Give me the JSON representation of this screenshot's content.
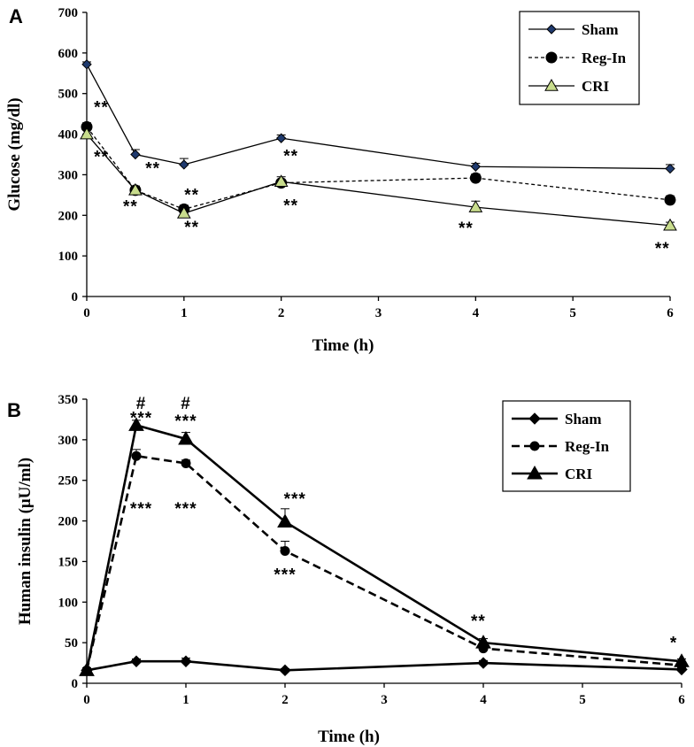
{
  "chart_data": [
    {
      "type": "line",
      "panel": "A",
      "title": "",
      "xlabel": "Time (h)",
      "ylabel": "Glucose (mg/dl)",
      "xlim": [
        0,
        6
      ],
      "ylim": [
        0,
        700
      ],
      "xticks": [
        0,
        1,
        2,
        3,
        4,
        5,
        6
      ],
      "yticks": [
        0,
        100,
        200,
        300,
        400,
        500,
        600,
        700
      ],
      "legend_position": "top-right",
      "series": [
        {
          "name": "Sham",
          "x": [
            0,
            0.5,
            1,
            2,
            4,
            6
          ],
          "values": [
            572,
            350,
            325,
            390,
            320,
            315
          ],
          "err": [
            6,
            12,
            15,
            8,
            8,
            10
          ],
          "marker": "diamond",
          "dash": "solid",
          "color": "#000000",
          "marker_fill": "#1f3a6e"
        },
        {
          "name": "Reg-In",
          "x": [
            0,
            0.5,
            1,
            2,
            4,
            6
          ],
          "values": [
            418,
            262,
            215,
            280,
            292,
            238
          ],
          "err": [
            10,
            10,
            10,
            8,
            10,
            10
          ],
          "marker": "circle",
          "dash": "dashed",
          "color": "#000000",
          "marker_fill": "#000000"
        },
        {
          "name": "CRI",
          "x": [
            0,
            0.5,
            1,
            2,
            4,
            6
          ],
          "values": [
            400,
            262,
            205,
            283,
            220,
            175
          ],
          "err": [
            10,
            10,
            12,
            12,
            15,
            8
          ],
          "marker": "triangle",
          "dash": "solid",
          "color": "#000000",
          "marker_fill": "#c8dc8c"
        }
      ],
      "annotations": [
        {
          "text": "**",
          "x": 0.15,
          "y": 452
        },
        {
          "text": "**",
          "x": 0.15,
          "y": 330
        },
        {
          "text": "**",
          "x": 0.68,
          "y": 302
        },
        {
          "text": "**",
          "x": 0.45,
          "y": 208
        },
        {
          "text": "**",
          "x": 1.08,
          "y": 237
        },
        {
          "text": "**",
          "x": 1.08,
          "y": 157
        },
        {
          "text": "**",
          "x": 2.1,
          "y": 333
        },
        {
          "text": "**",
          "x": 2.1,
          "y": 210
        },
        {
          "text": "**",
          "x": 3.9,
          "y": 155
        },
        {
          "text": "**",
          "x": 5.92,
          "y": 105
        }
      ]
    },
    {
      "type": "line",
      "panel": "B",
      "title": "",
      "xlabel": "Time (h)",
      "ylabel": "Human insulin (μU/ml)",
      "xlim": [
        0,
        6
      ],
      "ylim": [
        0,
        350
      ],
      "xticks": [
        0,
        1,
        2,
        3,
        4,
        5,
        6
      ],
      "yticks": [
        0,
        50,
        100,
        150,
        200,
        250,
        300,
        350
      ],
      "legend_position": "top-right",
      "series": [
        {
          "name": "Sham",
          "x": [
            0,
            0.5,
            1,
            2,
            4,
            6
          ],
          "values": [
            16,
            27,
            27,
            16,
            25,
            17
          ],
          "err": [
            3,
            3,
            4,
            2,
            3,
            3
          ],
          "marker": "diamond",
          "dash": "solid",
          "color": "#000000",
          "marker_fill": "#000000"
        },
        {
          "name": "Reg-In",
          "x": [
            0,
            0.5,
            1,
            2,
            4,
            6
          ],
          "values": [
            16,
            280,
            271,
            163,
            43,
            22
          ],
          "err": [
            3,
            8,
            4,
            12,
            4,
            3
          ],
          "marker": "circle",
          "dash": "dashed",
          "color": "#000000",
          "marker_fill": "#000000"
        },
        {
          "name": "CRI",
          "x": [
            0,
            0.5,
            1,
            2,
            4,
            6
          ],
          "values": [
            16,
            318,
            301,
            199,
            50,
            27
          ],
          "err": [
            3,
            6,
            8,
            16,
            5,
            3
          ],
          "marker": "triangle",
          "dash": "solid",
          "color": "#000000",
          "marker_fill": "#000000"
        }
      ],
      "annotations": [
        {
          "text": "#",
          "x": 0.55,
          "y": 338
        },
        {
          "text": "***",
          "x": 0.55,
          "y": 320
        },
        {
          "text": "#",
          "x": 1.0,
          "y": 338
        },
        {
          "text": "***",
          "x": 1.0,
          "y": 316
        },
        {
          "text": "***",
          "x": 0.55,
          "y": 208
        },
        {
          "text": "***",
          "x": 1.0,
          "y": 208
        },
        {
          "text": "***",
          "x": 2.1,
          "y": 220
        },
        {
          "text": "***",
          "x": 2.0,
          "y": 127
        },
        {
          "text": "**",
          "x": 3.95,
          "y": 70
        },
        {
          "text": "*",
          "x": 5.92,
          "y": 43
        }
      ]
    }
  ]
}
